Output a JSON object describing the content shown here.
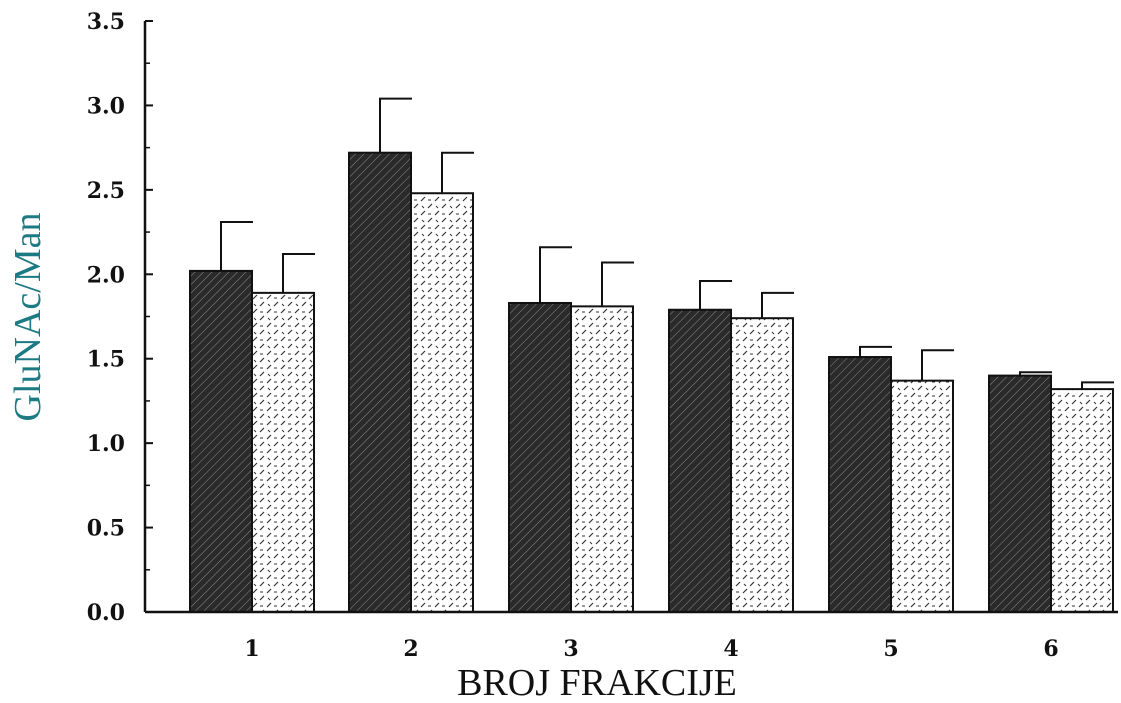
{
  "chart_data": {
    "type": "bar",
    "xlabel": "BROJ FRAKCIJE",
    "ylabel": "GluNAc/Man",
    "categories": [
      "1",
      "2",
      "3",
      "4",
      "5",
      "6"
    ],
    "ylim": [
      0,
      3.5
    ],
    "yticks": [
      "0.0",
      "0.5",
      "1.0",
      "1.5",
      "2.0",
      "2.5",
      "3.0",
      "3.5"
    ],
    "series": [
      {
        "values": [
          2.02,
          2.72,
          1.83,
          1.79,
          1.51,
          1.4
        ],
        "errors": [
          0.29,
          0.32,
          0.33,
          0.17,
          0.06,
          0.02
        ]
      },
      {
        "values": [
          1.89,
          2.48,
          1.81,
          1.74,
          1.37,
          1.32
        ],
        "errors": [
          0.23,
          0.24,
          0.26,
          0.15,
          0.18,
          0.04
        ]
      }
    ],
    "grid": false,
    "legend": "none"
  },
  "colors": {
    "axis": "#111111",
    "series_fills": [
      "diagonal-hatch-dark",
      "dashed-speckle-light"
    ],
    "ylabel_color": "#1b7a83"
  }
}
